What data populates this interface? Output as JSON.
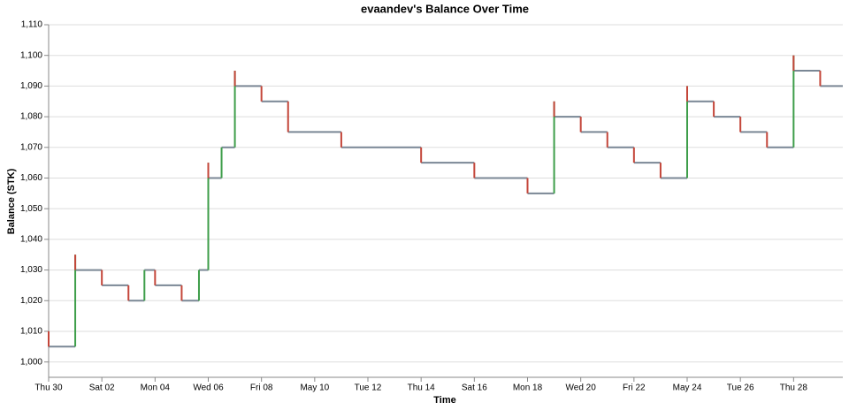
{
  "chart_data": {
    "type": "step",
    "title": "evaandev's Balance Over Time",
    "x_label": "Time",
    "y_label": "Balance (STK)",
    "x": [
      0,
      0,
      1,
      1,
      2,
      3,
      3.6,
      4,
      5,
      5.65,
      6,
      6,
      6.5,
      7,
      7,
      8,
      9,
      11,
      14,
      16,
      18,
      19,
      19,
      20,
      21,
      22,
      23,
      24,
      24,
      25,
      26,
      27,
      28,
      28,
      29
    ],
    "values": [
      1010,
      1005,
      1035,
      1030,
      1025,
      1020,
      1030,
      1025,
      1020,
      1030,
      1065,
      1060,
      1070,
      1095,
      1090,
      1085,
      1075,
      1070,
      1065,
      1060,
      1055,
      1085,
      1080,
      1075,
      1070,
      1065,
      1060,
      1090,
      1085,
      1080,
      1075,
      1070,
      1100,
      1095,
      1090
    ],
    "color": "#7a8795",
    "increase_color": "#3e9e4a",
    "decrease_color": "#c4463a",
    "xlim": [
      0,
      29.85
    ],
    "xticks": [
      {
        "value": 0,
        "label": "Thu 30"
      },
      {
        "value": 2,
        "label": "Sat 02"
      },
      {
        "value": 4,
        "label": "Mon 04"
      },
      {
        "value": 6,
        "label": "Wed 06"
      },
      {
        "value": 8,
        "label": "Fri 08"
      },
      {
        "value": 10,
        "label": "May 10"
      },
      {
        "value": 12,
        "label": "Tue 12"
      },
      {
        "value": 14,
        "label": "Thu 14"
      },
      {
        "value": 16,
        "label": "Sat 16"
      },
      {
        "value": 18,
        "label": "Mon 18"
      },
      {
        "value": 20,
        "label": "Wed 20"
      },
      {
        "value": 22,
        "label": "Fri 22"
      },
      {
        "value": 24,
        "label": "May 24"
      },
      {
        "value": 26,
        "label": "Tue 26"
      },
      {
        "value": 28,
        "label": "Thu 28"
      }
    ],
    "ylim": [
      995,
      1110
    ],
    "yticks": [
      {
        "value": 1000,
        "label": "1,000"
      },
      {
        "value": 1010,
        "label": "1,010"
      },
      {
        "value": 1020,
        "label": "1,020"
      },
      {
        "value": 1030,
        "label": "1,030"
      },
      {
        "value": 1040,
        "label": "1,040"
      },
      {
        "value": 1050,
        "label": "1,050"
      },
      {
        "value": 1060,
        "label": "1,060"
      },
      {
        "value": 1070,
        "label": "1,070"
      },
      {
        "value": 1080,
        "label": "1,080"
      },
      {
        "value": 1090,
        "label": "1,090"
      },
      {
        "value": 1100,
        "label": "1,100"
      },
      {
        "value": 1110,
        "label": "1,110"
      }
    ],
    "grid": true
  }
}
